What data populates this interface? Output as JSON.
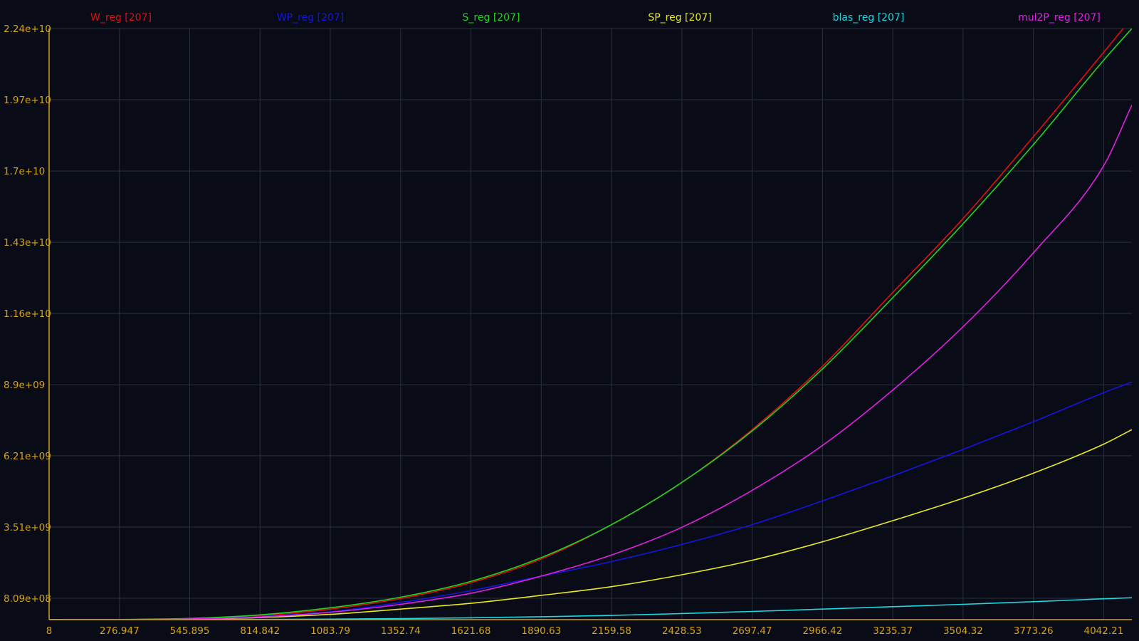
{
  "chart_data": {
    "type": "line",
    "title": "",
    "xlabel": "",
    "ylabel": "",
    "xlim": [
      8,
      4150
    ],
    "ylim": [
      0,
      22400000000
    ],
    "x_ticks": [
      "8",
      "276.947",
      "545.895",
      "814.842",
      "1083.79",
      "1352.74",
      "1621.68",
      "1890.63",
      "2159.58",
      "2428.53",
      "2697.47",
      "2966.42",
      "3235.37",
      "3504.32",
      "3773.26",
      "4042.21"
    ],
    "y_ticks": [
      "2.24e+10",
      "1.97e+10",
      "1.7e+10",
      "1.43e+10",
      "1.16e+10",
      "8.9e+09",
      "6.21e+09",
      "3.51e+09",
      "8.09e+08"
    ],
    "grid": true,
    "legend_position": "top",
    "x": [
      8,
      276.947,
      545.895,
      814.842,
      1083.79,
      1352.74,
      1621.68,
      1890.63,
      2159.58,
      2428.53,
      2697.47,
      2966.42,
      3235.37,
      3504.32,
      3773.26,
      4042.21,
      4150
    ],
    "series": [
      {
        "name": "W_reg [207]",
        "color": "#e01010",
        "values": [
          0,
          5000000,
          40000000,
          150000000,
          400000000,
          800000000,
          1400000000,
          2300000000,
          3600000000,
          5200000000,
          7200000000,
          9600000000,
          12400000000,
          15200000000,
          18300000000,
          21500000000,
          22800000000
        ]
      },
      {
        "name": "WP_reg [207]",
        "color": "#1515e0",
        "values": [
          0,
          4000000,
          30000000,
          120000000,
          300000000,
          650000000,
          1100000000,
          1650000000,
          2200000000,
          2850000000,
          3600000000,
          4500000000,
          5450000000,
          6450000000,
          7500000000,
          8600000000,
          9000000000
        ]
      },
      {
        "name": "S_reg [207]",
        "color": "#1ed41e",
        "values": [
          0,
          5000000,
          45000000,
          180000000,
          450000000,
          850000000,
          1450000000,
          2350000000,
          3600000000,
          5200000000,
          7150000000,
          9500000000,
          12200000000,
          15000000000,
          18000000000,
          21200000000,
          22400000000
        ]
      },
      {
        "name": "SP_reg [207]",
        "color": "#e8e820",
        "values": [
          0,
          3000000,
          20000000,
          80000000,
          200000000,
          400000000,
          620000000,
          920000000,
          1250000000,
          1700000000,
          2250000000,
          2950000000,
          3750000000,
          4600000000,
          5550000000,
          6650000000,
          7200000000
        ]
      },
      {
        "name": "blas_reg [207]",
        "color": "#1ed6e0",
        "values": [
          0,
          1000000,
          3000000,
          8000000,
          20000000,
          40000000,
          70000000,
          110000000,
          160000000,
          230000000,
          310000000,
          400000000,
          490000000,
          580000000,
          680000000,
          790000000,
          830000000
        ]
      },
      {
        "name": "mul2P_reg [207]",
        "color": "#e020e0",
        "values": [
          0,
          3000000,
          25000000,
          100000000,
          280000000,
          580000000,
          1000000000,
          1650000000,
          2450000000,
          3500000000,
          4900000000,
          6600000000,
          8700000000,
          11100000000,
          13900000000,
          17200000000,
          19500000000
        ]
      }
    ]
  }
}
